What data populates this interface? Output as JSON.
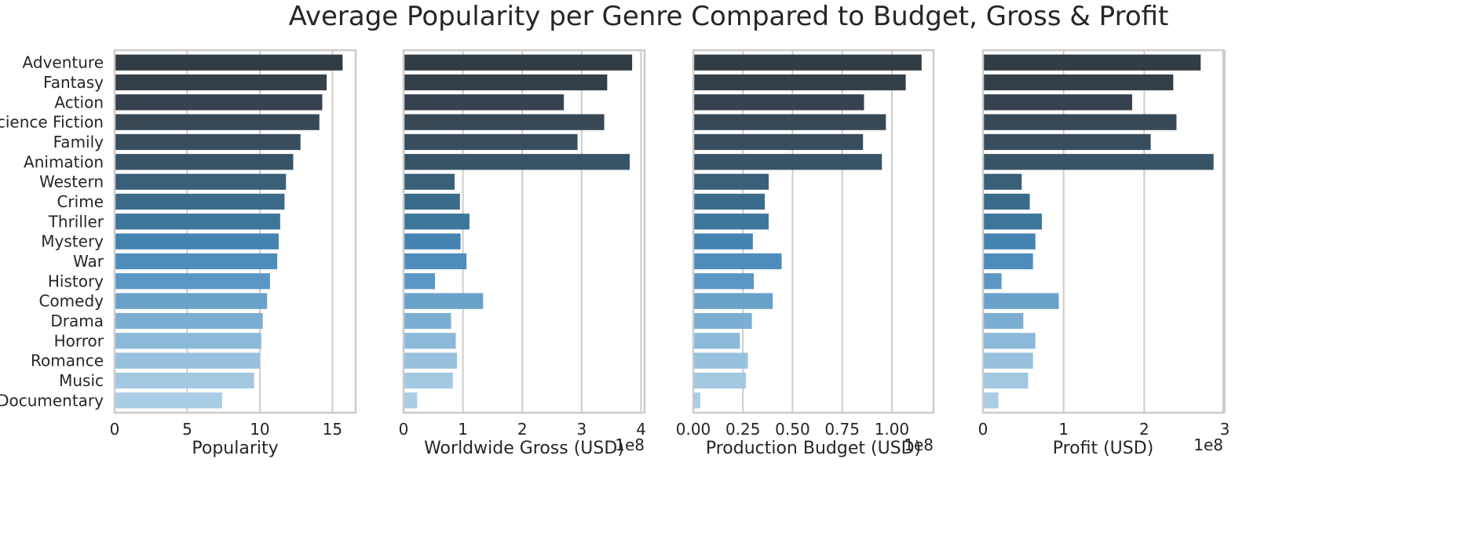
{
  "suptitle": "Average Popularity per Genre Compared to Budget, Gross & Profit",
  "chart_data": [
    {
      "type": "bar",
      "orientation": "horizontal",
      "title": "",
      "xlabel": "Popularity",
      "ylabel": "",
      "categories": [
        "Adventure",
        "Fantasy",
        "Action",
        "Science Fiction",
        "Family",
        "Animation",
        "Western",
        "Crime",
        "Thriller",
        "Mystery",
        "War",
        "History",
        "Comedy",
        "Drama",
        "Horror",
        "Romance",
        "Music",
        "Documentary"
      ],
      "values": [
        15.7,
        14.6,
        14.3,
        14.1,
        12.8,
        12.3,
        11.8,
        11.7,
        11.4,
        11.3,
        11.2,
        10.7,
        10.5,
        10.2,
        10.1,
        10.0,
        9.6,
        7.4
      ],
      "xlim": [
        0,
        16.6
      ],
      "xticks": [
        0,
        5,
        10,
        15
      ],
      "xtick_labels": [
        "0",
        "5",
        "10",
        "15"
      ],
      "offset_text": "",
      "grid": true
    },
    {
      "type": "bar",
      "orientation": "horizontal",
      "title": "",
      "xlabel": "Worldwide Gross (USD)",
      "ylabel": "",
      "categories": [
        "Adventure",
        "Fantasy",
        "Action",
        "Science Fiction",
        "Family",
        "Animation",
        "Western",
        "Crime",
        "Thriller",
        "Mystery",
        "War",
        "History",
        "Comedy",
        "Drama",
        "Horror",
        "Romance",
        "Music",
        "Documentary"
      ],
      "values": [
        3.85,
        3.43,
        2.7,
        3.38,
        2.93,
        3.81,
        0.86,
        0.95,
        1.11,
        0.96,
        1.06,
        0.53,
        1.34,
        0.8,
        0.88,
        0.9,
        0.83,
        0.23
      ],
      "value_scale": 100000000,
      "xlim": [
        0,
        4.06
      ],
      "xticks": [
        0,
        1,
        2,
        3,
        4
      ],
      "xtick_labels": [
        "0",
        "1",
        "2",
        "3",
        "4"
      ],
      "offset_text": "1e8",
      "grid": true
    },
    {
      "type": "bar",
      "orientation": "horizontal",
      "title": "",
      "xlabel": "Production Budget (USD)",
      "ylabel": "",
      "categories": [
        "Adventure",
        "Fantasy",
        "Action",
        "Science Fiction",
        "Family",
        "Animation",
        "Western",
        "Crime",
        "Thriller",
        "Mystery",
        "War",
        "History",
        "Comedy",
        "Drama",
        "Horror",
        "Romance",
        "Music",
        "Documentary"
      ],
      "values": [
        1.15,
        1.07,
        0.86,
        0.97,
        0.855,
        0.95,
        0.38,
        0.36,
        0.38,
        0.3,
        0.445,
        0.305,
        0.4,
        0.295,
        0.235,
        0.275,
        0.265,
        0.035
      ],
      "value_scale": 100000000,
      "xlim": [
        0,
        1.21
      ],
      "xticks": [
        0,
        0.25,
        0.5,
        0.75,
        1.0
      ],
      "xtick_labels": [
        "0.00",
        "0.25",
        "0.50",
        "0.75",
        "1.00"
      ],
      "offset_text": "1e8",
      "grid": true
    },
    {
      "type": "bar",
      "orientation": "horizontal",
      "title": "",
      "xlabel": "Profit (USD)",
      "ylabel": "",
      "categories": [
        "Adventure",
        "Fantasy",
        "Action",
        "Science Fiction",
        "Family",
        "Animation",
        "Western",
        "Crime",
        "Thriller",
        "Mystery",
        "War",
        "History",
        "Comedy",
        "Drama",
        "Horror",
        "Romance",
        "Music",
        "Documentary"
      ],
      "values": [
        2.7,
        2.36,
        1.85,
        2.4,
        2.08,
        2.86,
        0.48,
        0.58,
        0.73,
        0.65,
        0.62,
        0.23,
        0.94,
        0.5,
        0.65,
        0.62,
        0.56,
        0.19
      ],
      "value_scale": 100000000,
      "xlim": [
        0,
        2.98
      ],
      "xticks": [
        0,
        1,
        2,
        3
      ],
      "xtick_labels": [
        "0",
        "1",
        "2",
        "3"
      ],
      "offset_text": "1e8",
      "grid": true
    }
  ],
  "style": {
    "palette": "Blues_d",
    "bar_colors": [
      "#323c45",
      "#343f49",
      "#36434f",
      "#374856",
      "#384d5e",
      "#395466",
      "#3a5f78",
      "#3b6b8a",
      "#3d769a",
      "#4583b0",
      "#4e8cbc",
      "#5b97c4",
      "#6aa1cb",
      "#7caed2",
      "#8cb9d9",
      "#98c1de",
      "#a3c8e2",
      "#aacde6"
    ],
    "grid_color": "#cccccc",
    "spine_color": "#cccccc"
  }
}
